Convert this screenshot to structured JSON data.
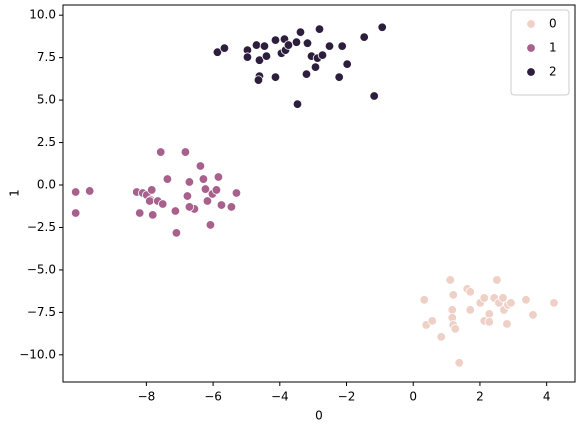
{
  "chart_data": {
    "type": "scatter",
    "x_label": "0",
    "y_label": "1",
    "xlim": [
      -10.5,
      4.85
    ],
    "ylim": [
      -11.6,
      10.6
    ],
    "xticks": [
      {
        "value": -8,
        "label": "−8"
      },
      {
        "value": -6,
        "label": "−6"
      },
      {
        "value": -4,
        "label": "−4"
      },
      {
        "value": -2,
        "label": "−2"
      },
      0,
      2,
      4
    ],
    "yticks": [
      {
        "value": -10,
        "label": "−10.0"
      },
      {
        "value": -7.5,
        "label": "−7.5"
      },
      {
        "value": -5,
        "label": "−5.0"
      },
      {
        "value": -2.5,
        "label": "−2.5"
      },
      {
        "value": 0,
        "label": "0.0"
      },
      2.5,
      {
        "value": 5,
        "label": "5.0"
      },
      7.5,
      {
        "value": 10,
        "label": "10.0"
      }
    ],
    "grid": false,
    "legend": "upper right",
    "series": [
      {
        "name": "0",
        "color": "#eed0c6",
        "x": [
          0.33,
          0.39,
          0.57,
          0.84,
          1.11,
          1.17,
          1.17,
          1.2,
          1.26,
          1.38,
          1.62,
          1.71,
          1.71,
          2.01,
          2.13,
          2.13,
          2.28,
          2.28,
          2.43,
          2.51,
          2.57,
          2.69,
          2.72,
          2.81,
          2.84,
          2.93,
          3.38,
          3.59,
          4.22,
          1.2
        ],
        "values": [
          -6.76,
          -8.24,
          -8.0,
          -8.94,
          -5.59,
          -7.35,
          -7.82,
          -8.24,
          -8.47,
          -10.47,
          -6.12,
          -7.35,
          -6.29,
          -6.94,
          -6.65,
          -8.0,
          -7.59,
          -8.06,
          -6.65,
          -5.59,
          -6.94,
          -6.65,
          -7.35,
          -8.18,
          -7.06,
          -6.94,
          -6.76,
          -7.65,
          -6.94,
          -6.47
        ]
      },
      {
        "name": "1",
        "color": "#a8608c",
        "x": [
          -10.12,
          -10.12,
          -9.7,
          -8.29,
          -8.11,
          -7.99,
          -7.84,
          -7.87,
          -8.2,
          -7.9,
          -7.81,
          -7.66,
          -7.51,
          -7.57,
          -7.37,
          -7.13,
          -7.1,
          -6.83,
          -6.77,
          -6.71,
          -6.65,
          -6.56,
          -6.71,
          -6.38,
          -6.29,
          -6.23,
          -6.17,
          -6.08,
          -6.02,
          -5.9,
          -5.84,
          -5.75,
          -5.45,
          -5.3
        ],
        "values": [
          -0.41,
          -1.65,
          -0.35,
          -0.41,
          -0.47,
          -0.59,
          -0.29,
          -0.88,
          -1.65,
          -0.94,
          -1.76,
          -0.94,
          -1.12,
          1.94,
          0.35,
          -1.53,
          -2.82,
          1.94,
          -0.65,
          0.18,
          -1.35,
          -1.41,
          -1.29,
          1.12,
          0.35,
          -0.24,
          -0.94,
          -2.35,
          -0.53,
          -0.29,
          0.47,
          -1.18,
          -1.29,
          -0.47
        ]
      },
      {
        "name": "2",
        "color": "#2d1e3e",
        "x": [
          -5.87,
          -5.66,
          -4.97,
          -4.7,
          -4.46,
          -4.13,
          -3.86,
          -3.5,
          -3.38,
          -2.81,
          -4.97,
          -4.61,
          -4.4,
          -3.95,
          -3.83,
          -3.74,
          -3.17,
          -3.05,
          -2.87,
          -2.72,
          -2.51,
          -2.13,
          -1.98,
          -1.47,
          -0.93,
          -4.61,
          -4.13,
          -2.93,
          -2.22,
          -3.2,
          -3.47,
          -1.17,
          -4.64
        ],
        "values": [
          7.82,
          8.06,
          7.94,
          8.24,
          8.18,
          8.53,
          8.59,
          8.41,
          9.0,
          9.18,
          7.53,
          7.35,
          7.59,
          7.76,
          7.94,
          8.24,
          8.35,
          7.59,
          7.47,
          7.65,
          8.18,
          8.18,
          7.12,
          8.71,
          9.29,
          6.41,
          6.35,
          6.94,
          6.35,
          6.53,
          4.76,
          5.24,
          6.18
        ]
      }
    ]
  }
}
